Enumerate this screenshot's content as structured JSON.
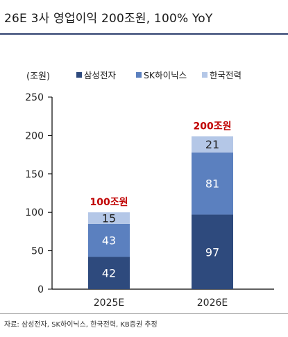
{
  "title": "26E 3사 영업이익 200조원, 100% YoY",
  "source": "자료: 삼성전자, SK하이닉스, 한국전력, KB증권 추정",
  "chart_data": {
    "type": "bar",
    "stacked": true,
    "title": "",
    "ylabel": "(조원)",
    "ylim": [
      0,
      250
    ],
    "yticks": [
      0,
      50,
      100,
      150,
      200,
      250
    ],
    "categories": [
      "2025E",
      "2026E"
    ],
    "series": [
      {
        "name": "삼성전자",
        "values": [
          42,
          97
        ],
        "color": "#2e4a7d"
      },
      {
        "name": "SK하이닉스",
        "values": [
          43,
          81
        ],
        "color": "#5b80bf"
      },
      {
        "name": "한국전력",
        "values": [
          15,
          21
        ],
        "color": "#b4c7e7"
      }
    ],
    "totals_labels": [
      "100조원",
      "200조원"
    ],
    "totals_color": "#c00000",
    "legend_position": "top",
    "grid": false
  }
}
